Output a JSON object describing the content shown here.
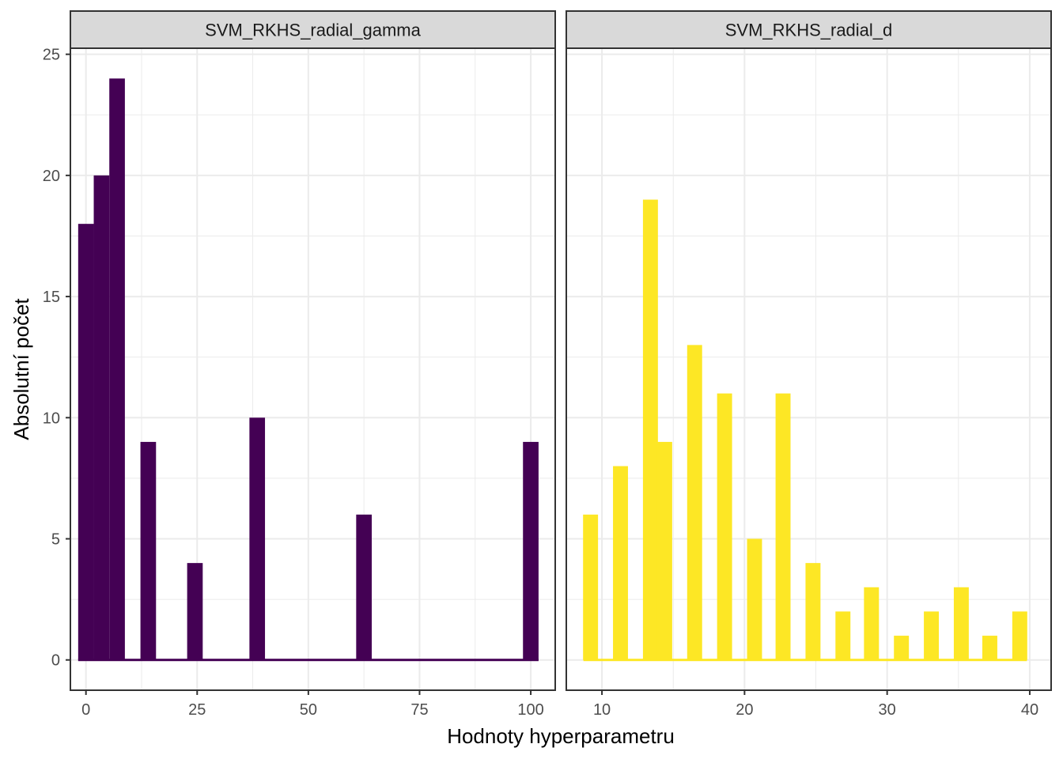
{
  "xlabel": "Hodnoty hyperparametru",
  "ylabel": "Absolutní počet",
  "colors": {
    "gamma_fill": "#440154",
    "d_fill": "#FDE725",
    "grid": "#EBEBEB",
    "strip_bg": "#D9D9D9",
    "panel_border": "#333333"
  },
  "chart_data": [
    {
      "type": "bar",
      "panel": "SVM_RKHS_radial_gamma",
      "xlim": [
        -3.5,
        105.5
      ],
      "ylim": [
        -1.25,
        25.25
      ],
      "x_ticks": [
        0,
        25,
        50,
        75,
        100
      ],
      "y_ticks": [
        0,
        5,
        10,
        15,
        20,
        25
      ],
      "grid": true,
      "bin_width": 3.5,
      "x": [
        0,
        3.5,
        7,
        14,
        24.5,
        38.5,
        62.5,
        100
      ],
      "values": [
        18,
        20,
        24,
        9,
        4,
        10,
        6,
        9
      ],
      "baseline": [
        -1.75,
        101.75
      ]
    },
    {
      "type": "bar",
      "panel": "SVM_RKHS_radial_d",
      "xlim": [
        7.5,
        41.5
      ],
      "ylim": [
        -1.25,
        25.25
      ],
      "x_ticks": [
        10,
        20,
        30,
        40
      ],
      "y_ticks": [
        0,
        5,
        10,
        15,
        20,
        25
      ],
      "grid": true,
      "bin_width": 1.05,
      "x": [
        9.2,
        11.3,
        13.4,
        14.4,
        16.5,
        18.6,
        20.7,
        22.7,
        24.8,
        26.9,
        28.9,
        31.0,
        33.1,
        35.2,
        37.2,
        39.3
      ],
      "values": [
        6,
        8,
        19,
        9,
        13,
        11,
        5,
        11,
        4,
        2,
        3,
        1,
        2,
        3,
        1,
        2
      ],
      "baseline": [
        8.7,
        39.8
      ]
    }
  ]
}
